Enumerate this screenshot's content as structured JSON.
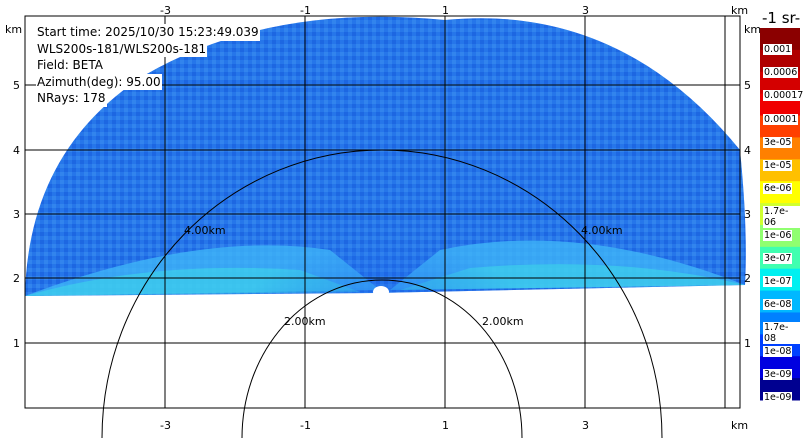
{
  "info": {
    "start_time": "Start time: 2025/10/30 15:23:49.039",
    "instrument": "WLS200s-181/WLS200s-181",
    "field": "Field: BETA",
    "azimuth": "Azimuth(deg): 95.00",
    "nrays": "NRays: 178"
  },
  "axes": {
    "unit": "km",
    "x_ticks": [
      "-3",
      "-1",
      "1",
      "3"
    ],
    "y_ticks": [
      "5",
      "4",
      "3",
      "2",
      "1"
    ]
  },
  "range_rings": [
    "2.00km",
    "4.00km"
  ],
  "colorbar": {
    "title": "-1 sr-",
    "labels": [
      "0.001",
      "0.0006",
      "0.00017",
      "0.0001",
      "3e-05",
      "1e-05",
      "6e-06",
      "1.7e-06",
      "1e-06",
      "3e-07",
      "1e-07",
      "6e-08",
      "1.7e-08",
      "1e-08",
      "3e-09",
      "1e-09"
    ],
    "colors": [
      "#8b0000",
      "#b00000",
      "#d40000",
      "#f00000",
      "#ff4000",
      "#ff8000",
      "#ffc000",
      "#ffff00",
      "#d0ff30",
      "#90ff70",
      "#40ffb0",
      "#00f0f0",
      "#00b8ff",
      "#0080ff",
      "#0040ff",
      "#0000e0",
      "#000090"
    ]
  }
}
